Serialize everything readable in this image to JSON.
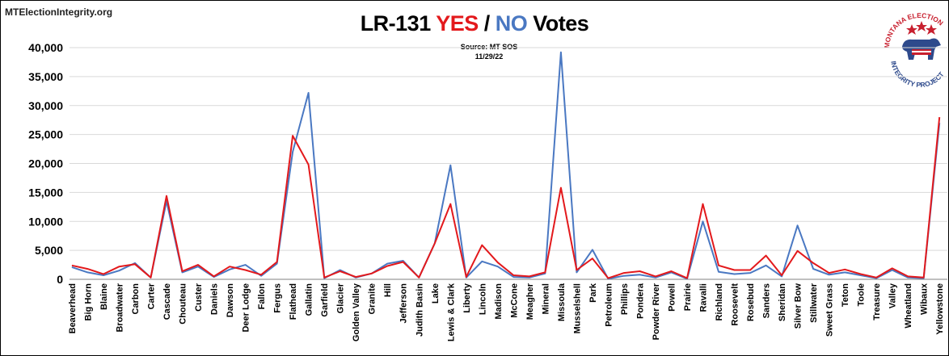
{
  "site": "MTElectionIntegrity.org",
  "title": {
    "part1": "LR-131 ",
    "yes": "YES",
    "slash": " / ",
    "no": "NO",
    "part2": " Votes"
  },
  "source": {
    "line1": "Source: MT SOS",
    "line2": "11/29/22"
  },
  "logo": {
    "top_text": "MONTANA ELECTION",
    "bottom_text": "INTEGRITY PROJECT",
    "icon": "bear-icon"
  },
  "colors": {
    "yes": "#e3191c",
    "no": "#4a78c2",
    "logo_red": "#c8202f",
    "logo_blue": "#2e4a8c"
  },
  "chart_data": {
    "type": "line",
    "title": "LR-131 YES / NO Votes",
    "subtitle": "Source: MT SOS 11/29/22",
    "xlabel": "",
    "ylabel": "",
    "ylim": [
      0,
      40000
    ],
    "yticks": [
      0,
      5000,
      10000,
      15000,
      20000,
      25000,
      30000,
      35000,
      40000
    ],
    "ytick_labels": [
      "0",
      "5,000",
      "10,000",
      "15,000",
      "20,000",
      "25,000",
      "30,000",
      "35,000",
      "40,000"
    ],
    "grid": true,
    "legend": "none",
    "categories": [
      "Beaverhead",
      "Big Horn",
      "Blaine",
      "Broadwater",
      "Carbon",
      "Carter",
      "Cascade",
      "Chouteau",
      "Custer",
      "Daniels",
      "Dawson",
      "Deer Lodge",
      "Fallon",
      "Fergus",
      "Flathead",
      "Gallatin",
      "Garfield",
      "Glacier",
      "Golden Valley",
      "Granite",
      "Hill",
      "Jefferson",
      "Judith Basin",
      "Lake",
      "Lewis & Clark",
      "Liberty",
      "Lincoln",
      "Madison",
      "McCone",
      "Meagher",
      "Mineral",
      "Missoula",
      "Musselshell",
      "Park",
      "Petroleum",
      "Phillips",
      "Pondera",
      "Powder River",
      "Powell",
      "Prairie",
      "Ravalli",
      "Richland",
      "Roosevelt",
      "Rosebud",
      "Sanders",
      "Sheridan",
      "Silver Bow",
      "Stillwater",
      "Sweet Grass",
      "Teton",
      "Toole",
      "Treasure",
      "Valley",
      "Wheatland",
      "Wibaux",
      "Yellowstone"
    ],
    "series": [
      {
        "name": "YES",
        "values": [
          2400,
          1800,
          900,
          2200,
          2600,
          300,
          14400,
          1400,
          2500,
          500,
          2200,
          1600,
          800,
          3000,
          24800,
          19800,
          300,
          1400,
          400,
          1000,
          2300,
          3000,
          300,
          6200,
          13000,
          400,
          5900,
          2900,
          700,
          500,
          1200,
          15800,
          1600,
          3600,
          200,
          1100,
          1400,
          500,
          1400,
          200,
          13000,
          2400,
          1600,
          1600,
          4100,
          700,
          4900,
          2800,
          1100,
          1700,
          900,
          300,
          1900,
          500,
          300,
          28000
        ]
      },
      {
        "name": "NO",
        "values": [
          2100,
          1200,
          700,
          1500,
          2800,
          300,
          13500,
          1200,
          2200,
          400,
          1700,
          2500,
          600,
          2700,
          22000,
          32200,
          200,
          1600,
          300,
          1000,
          2700,
          3200,
          300,
          6200,
          19700,
          300,
          3100,
          2200,
          400,
          300,
          1000,
          39200,
          1200,
          5100,
          100,
          600,
          800,
          300,
          1200,
          100,
          10000,
          1300,
          900,
          1100,
          2400,
          500,
          9300,
          1800,
          800,
          1200,
          700,
          200,
          1600,
          300,
          200,
          27000
        ]
      }
    ]
  }
}
